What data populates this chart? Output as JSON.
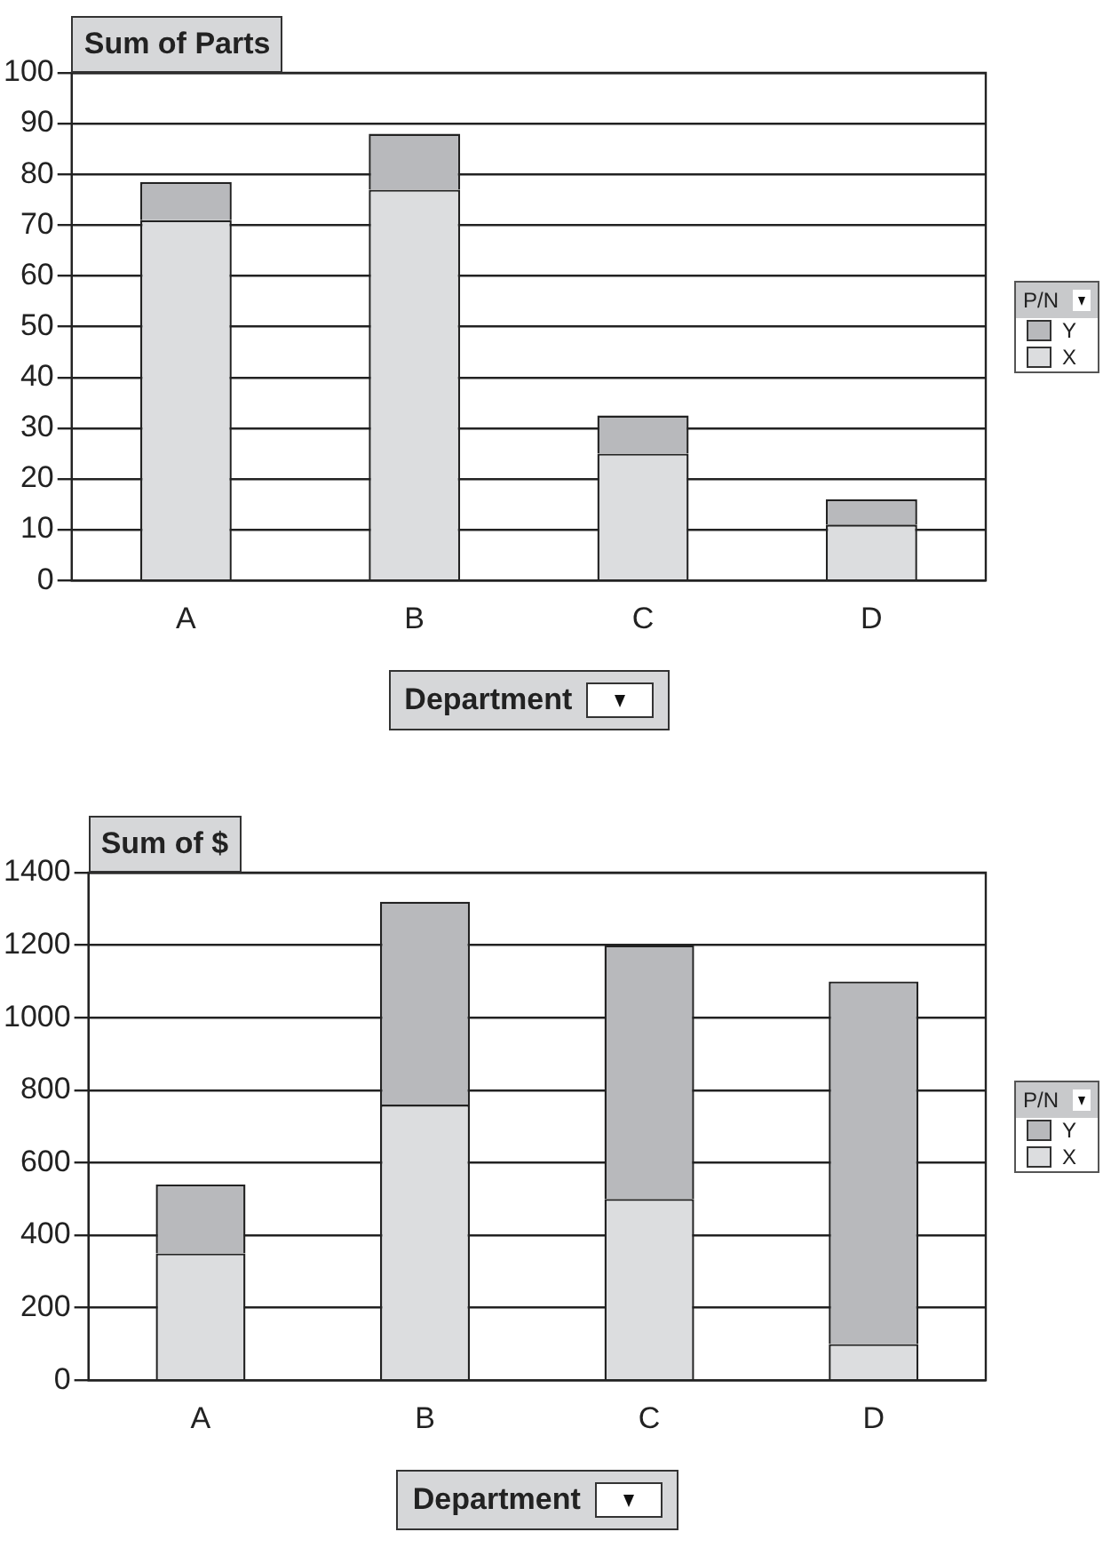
{
  "chart_data": [
    {
      "type": "bar",
      "title": "Sum of Parts",
      "xlabel": "Department",
      "legend_title": "P/N",
      "categories": [
        "A",
        "B",
        "C",
        "D"
      ],
      "stacked": true,
      "series": [
        {
          "name": "X",
          "color": "#dcdddf",
          "values": [
            71,
            77,
            25,
            11
          ]
        },
        {
          "name": "Y",
          "color": "#b8b9bc",
          "values": [
            7.5,
            11,
            7.5,
            5
          ]
        }
      ],
      "ylim": [
        0,
        100
      ],
      "yticks": [
        0,
        10,
        20,
        30,
        40,
        50,
        60,
        70,
        80,
        90,
        100
      ],
      "grid": "y",
      "legend": "right"
    },
    {
      "type": "bar",
      "title": "Sum of $",
      "xlabel": "Department",
      "legend_title": "P/N",
      "categories": [
        "A",
        "B",
        "C",
        "D"
      ],
      "stacked": true,
      "series": [
        {
          "name": "X",
          "color": "#dcdddf",
          "values": [
            350,
            760,
            500,
            100
          ]
        },
        {
          "name": "Y",
          "color": "#b8b9bc",
          "values": [
            190,
            560,
            700,
            1000
          ]
        }
      ],
      "ylim": [
        0,
        1400
      ],
      "yticks": [
        0,
        200,
        400,
        600,
        800,
        1000,
        1200,
        1400
      ],
      "grid": "y",
      "legend": "right"
    }
  ]
}
